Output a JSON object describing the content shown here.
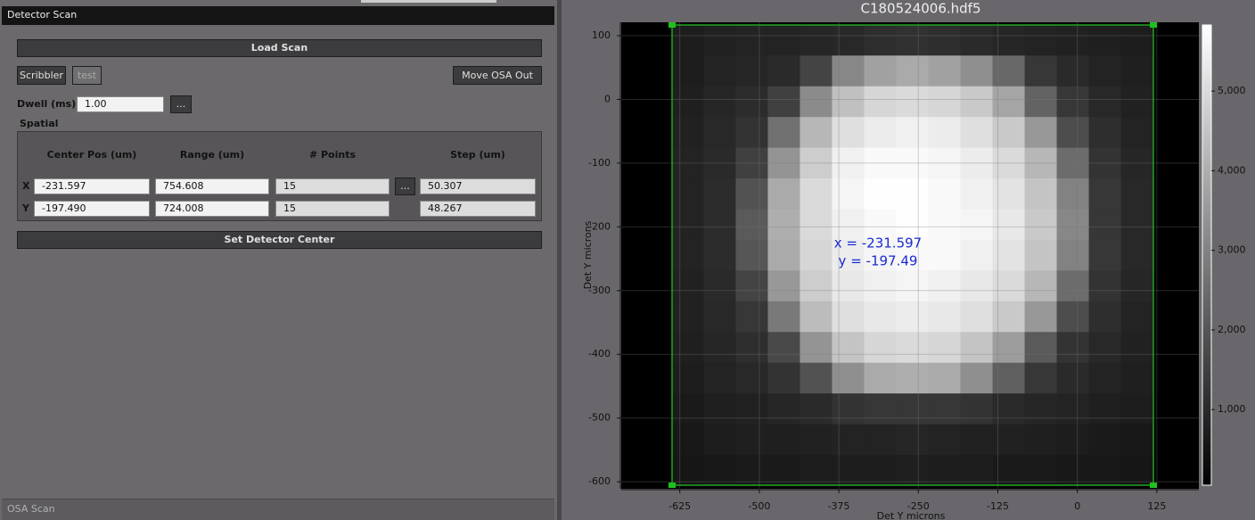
{
  "panel": {
    "title": "Detector Scan",
    "load_button": "Load Scan",
    "buttons": [
      "Scribbler",
      "test",
      "Move OSA Out"
    ],
    "dwell_label": "Dwell (ms)",
    "dwell_value": "1.00",
    "more": "...",
    "spatial": "Spatial",
    "table": {
      "headers": [
        "Center Pos (um)",
        "Range (um)",
        "# Points",
        "Step (um)"
      ],
      "rows": [
        [
          "X",
          "-231.597",
          "754.608",
          "15",
          "50.307"
        ],
        [
          "Y",
          "-197.490",
          "724.008",
          "15",
          "48.267"
        ]
      ]
    },
    "set_button": "Set Detector Center",
    "footer": "OSA Scan"
  },
  "chart_data": {
    "type": "heatmap",
    "title": "C180524006.hdf5",
    "x_label": "Det Y microns",
    "y_label": "Det Y microns",
    "annotations": [
      "x = -231.597",
      "y = -197.49"
    ],
    "xlim": [
      -717,
      191
    ],
    "ylim": [
      121,
      -611
    ],
    "xticks": [
      -625,
      -500,
      -375,
      -250,
      -125,
      0,
      125
    ],
    "yticks": [
      100,
      0,
      -100,
      -200,
      -300,
      -400,
      -500,
      -600
    ],
    "grid": true,
    "x_extent": [
      -638,
      119
    ],
    "y_extent": [
      117,
      -606
    ],
    "colormap": "gray",
    "clim": [
      50,
      5830
    ],
    "cticks": [
      {
        "value": 1000,
        "label": "1,000"
      },
      {
        "value": 2000,
        "label": "2,000"
      },
      {
        "value": 3000,
        "label": "3,000"
      },
      {
        "value": 4000,
        "label": "4,000"
      },
      {
        "value": 5000,
        "label": "5,000"
      }
    ],
    "z": [
      [
        700,
        800,
        850,
        850,
        900,
        950,
        1100,
        1150,
        1100,
        1000,
        900,
        850,
        800,
        750,
        700
      ],
      [
        700,
        850,
        900,
        1000,
        1600,
        3100,
        3700,
        3900,
        3700,
        3300,
        2400,
        1300,
        1000,
        850,
        750
      ],
      [
        750,
        900,
        1050,
        1500,
        3200,
        4400,
        4900,
        5000,
        4900,
        4600,
        3800,
        2300,
        1300,
        950,
        800
      ],
      [
        800,
        950,
        1200,
        2600,
        4200,
        5100,
        5400,
        5500,
        5400,
        5100,
        4600,
        3500,
        1800,
        1100,
        850
      ],
      [
        850,
        1000,
        1500,
        3400,
        4700,
        5500,
        5700,
        5700,
        5600,
        5400,
        5000,
        4200,
        2500,
        1200,
        900
      ],
      [
        850,
        1050,
        1900,
        3900,
        5000,
        5600,
        5800,
        5800,
        5700,
        5500,
        5200,
        4500,
        3000,
        1300,
        950
      ],
      [
        850,
        1050,
        2100,
        4000,
        5000,
        5500,
        5700,
        5800,
        5700,
        5600,
        5300,
        4600,
        3100,
        1300,
        950
      ],
      [
        850,
        1050,
        2000,
        3900,
        4900,
        5400,
        5600,
        5700,
        5700,
        5500,
        5200,
        4500,
        3000,
        1300,
        950
      ],
      [
        800,
        1000,
        1600,
        3500,
        4700,
        5300,
        5500,
        5600,
        5500,
        5300,
        5000,
        4200,
        2500,
        1200,
        900
      ],
      [
        800,
        950,
        1300,
        2800,
        4300,
        5100,
        5300,
        5400,
        5300,
        5100,
        4600,
        3500,
        1800,
        1100,
        850
      ],
      [
        750,
        900,
        1100,
        1700,
        3400,
        4500,
        4900,
        5000,
        4900,
        4500,
        3600,
        2100,
        1200,
        950,
        800
      ],
      [
        700,
        850,
        950,
        1200,
        1900,
        3300,
        3900,
        4000,
        3900,
        3300,
        2200,
        1300,
        1000,
        850,
        750
      ],
      [
        650,
        750,
        800,
        900,
        1000,
        1200,
        1300,
        1300,
        1300,
        1200,
        1000,
        900,
        850,
        750,
        700
      ],
      [
        600,
        700,
        750,
        750,
        800,
        850,
        850,
        900,
        850,
        800,
        800,
        750,
        700,
        650,
        600
      ],
      [
        550,
        600,
        650,
        650,
        700,
        700,
        700,
        750,
        700,
        700,
        650,
        650,
        600,
        600,
        550
      ]
    ]
  }
}
